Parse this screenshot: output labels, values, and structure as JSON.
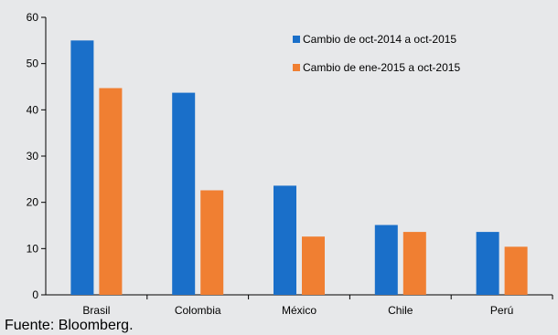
{
  "chart_data": {
    "type": "bar",
    "categories": [
      "Brasil",
      "Colombia",
      "México",
      "Chile",
      "Perú"
    ],
    "series": [
      {
        "name": "Cambio de oct-2014 a oct-2015",
        "color": "#1a6fc9",
        "values": [
          55,
          43.7,
          23.6,
          15.1,
          13.6
        ]
      },
      {
        "name": "Cambio de ene-2015 a oct-2015",
        "color": "#f07f32",
        "values": [
          44.7,
          22.6,
          12.6,
          13.6,
          10.4
        ]
      }
    ],
    "yticks": [
      0,
      10,
      20,
      30,
      40,
      50,
      60
    ],
    "ylim": [
      0,
      60
    ],
    "legend_position": "top-right",
    "grid": false
  },
  "source_note": "Fuente: Bloomberg."
}
